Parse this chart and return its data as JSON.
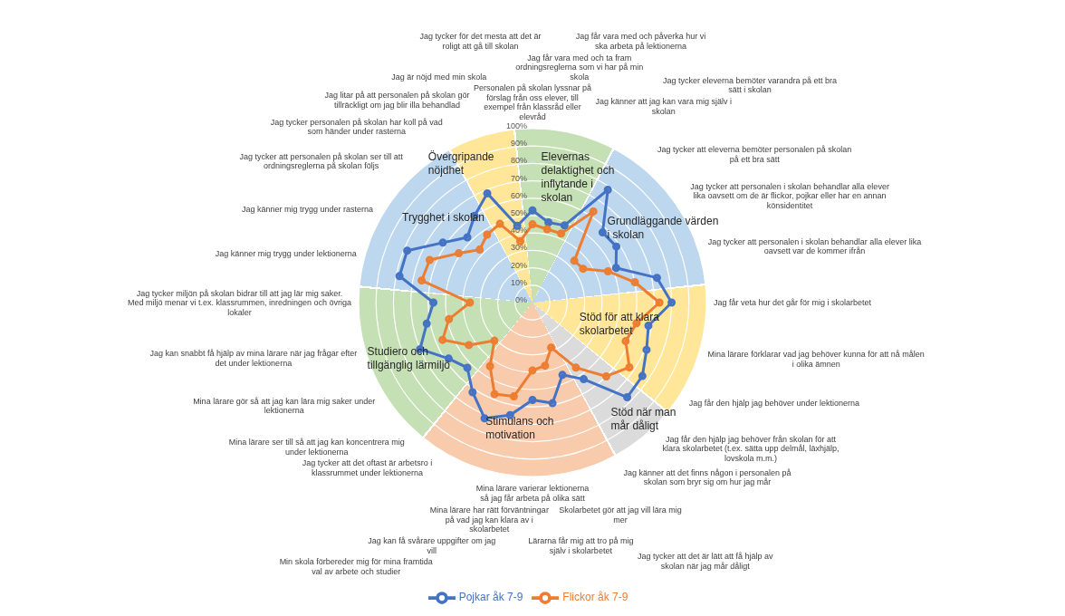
{
  "chart_data": {
    "type": "radar",
    "categories": [
      "Personalen på skolan lyssnar på förslag från oss elever, till exempel från klassråd eller elevråd",
      "Jag får vara med och ta fram ordningsreglerna som vi har på min skola",
      "Jag får vara med och påverka hur vi ska arbeta på lektionerna",
      "Jag känner att jag kan vara mig själv i skolan",
      "Jag tycker eleverna bemöter varandra på ett bra sätt i skolan",
      "Jag tycker att eleverna bemöter personalen på skolan på ett bra sätt",
      "Jag tycker att personalen i skolan behandlar alla elever lika oavsett om de är flickor, pojkar eller har en annan könsidentitet",
      "Jag tycker att personalen i skolan behandlar alla elever lika oavsett var de kommer ifrån",
      "Jag får veta hur det går för mig i skolarbetet",
      "Mina lärare förklarar vad jag behöver kunna för att nå målen i olika ämnen",
      "Jag får den hjälp jag behöver under lektionerna",
      "Jag får den hjälp jag behöver från skolan för att klara skolarbetet (t.ex. sätta upp delmål, läxhjälp, lovskola m.m.)",
      "Jag känner att det finns någon i personalen på skolan som bryr sig om hur jag mår",
      "Jag tycker att det är lätt att få hjälp av skolan när jag mår dåligt",
      "Skolarbetet gör att jag vill lära mig mer",
      "Lärarna får mig att tro på mig själv i skolarbetet",
      "Mina lärare varierar lektionerna så jag får arbeta på olika sätt",
      "Mina lärare har rätt förväntningar på vad jag kan klara av i skolarbetet",
      "Jag kan få svårare uppgifter om jag vill",
      "Min skola förbereder mig för mina framtida val av arbete och studier",
      "Jag tycker att det oftast är arbetsro i klassrummet under lektionerna",
      "Mina lärare ser till så att jag kan koncentrera mig under lektionerna",
      "Mina lärare gör så att jag kan lära mig saker under lektionerna",
      "Jag kan snabbt få hjälp av mina lärare när jag frågar efter det under lektionerna",
      "Jag tycker miljön på skolan bidrar till att jag lär mig saker. Med miljö menar vi t.ex. klassrummen, inredningen och övriga lokaler",
      "Jag känner mig trygg under lektionerna",
      "Jag känner mig trygg under rasterna",
      "Jag tycker att personalen på skolan ser till att ordningsreglerna på skolan följs",
      "Jag tycker personalen på skolan har koll på vad som händer under rasterna",
      "Jag litar på att personalen på skolan gör tillräckligt om jag blir illa behandlad",
      "Jag är nöjd med min skola",
      "Jag tycker för det mesta att det är roligt att gå till skolan"
    ],
    "series": [
      {
        "name": "Pojkar åk 7-9",
        "color": "#4472c4",
        "values": [
          53,
          47,
          48,
          78,
          57,
          58,
          52,
          73,
          80,
          68,
          71,
          76,
          77,
          53,
          45,
          59,
          56,
          66,
          72,
          62,
          53,
          58,
          70,
          62,
          57,
          78,
          78,
          62,
          53,
          60,
          68,
          45
        ]
      },
      {
        "name": "Flickor åk 7-9",
        "color": "#ed7d31",
        "values": [
          45,
          43,
          43,
          63,
          34,
          35,
          47,
          60,
          73,
          61,
          58,
          67,
          60,
          45,
          28,
          37,
          39,
          55,
          57,
          44,
          31,
          44,
          56,
          49,
          36,
          65,
          64,
          51,
          43,
          47,
          49,
          36
        ]
      }
    ],
    "ylim": [
      0,
      100
    ],
    "yticks": [
      {
        "value": 0,
        "label": "0%"
      },
      {
        "value": 10,
        "label": "10%"
      },
      {
        "value": 20,
        "label": "20%"
      },
      {
        "value": 30,
        "label": "30%"
      },
      {
        "value": 40,
        "label": "40%"
      },
      {
        "value": 50,
        "label": "50%"
      },
      {
        "value": 60,
        "label": "60%"
      },
      {
        "value": 70,
        "label": "70%"
      },
      {
        "value": 80,
        "label": "80%"
      },
      {
        "value": 90,
        "label": "90%"
      },
      {
        "value": 100,
        "label": "100%"
      }
    ],
    "annotations": [
      "Elevernas delaktighet och inflytande i skolan",
      "Grundläggande värden i skolan",
      "Stöd för att klara skolarbetet",
      "Stöd när man mår dåligt",
      "Stimulans och motivation",
      "Studiero och tillgänglig lärmiljö",
      "Trygghet i skolan",
      "Övergripande nöjdhet"
    ],
    "grid": true,
    "legend": "bottom",
    "marker": "circle",
    "line_style": "solid"
  }
}
